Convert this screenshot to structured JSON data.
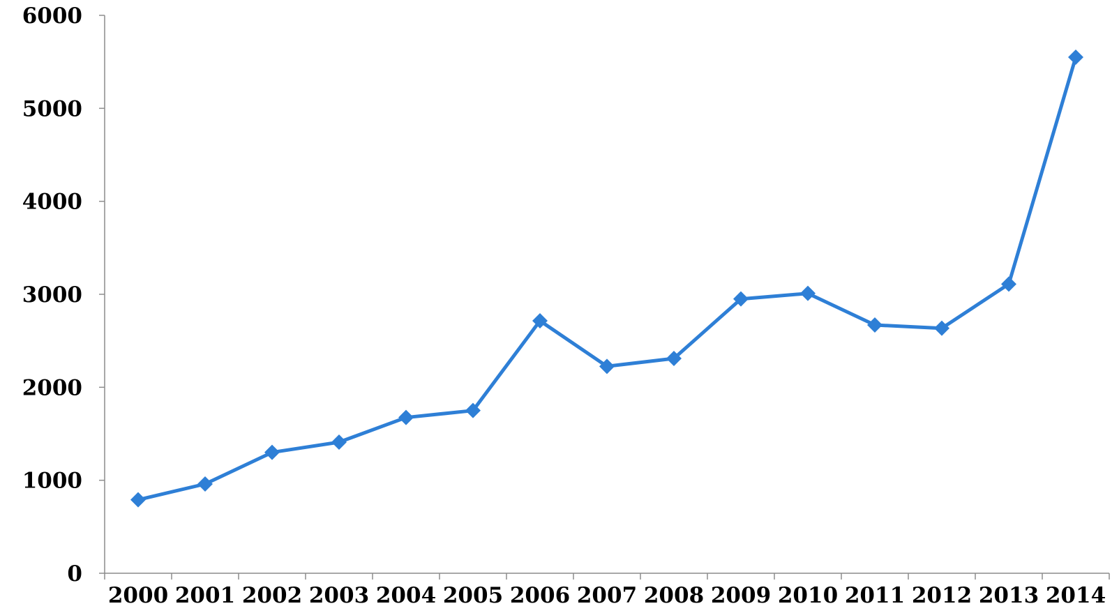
{
  "chart_data": {
    "type": "line",
    "title": "",
    "xlabel": "",
    "ylabel": "",
    "categories": [
      "2000",
      "2001",
      "2002",
      "2003",
      "2004",
      "2005",
      "2006",
      "2007",
      "2008",
      "2009",
      "2010",
      "2011",
      "2012",
      "2013",
      "2014"
    ],
    "series": [
      {
        "values": [
          790,
          960,
          1300,
          1410,
          1675,
          1750,
          2715,
          2225,
          2310,
          2950,
          3010,
          2670,
          2635,
          3110,
          5550
        ],
        "color": "#2e7fd6",
        "marker": "diamond"
      }
    ],
    "ylim": [
      0,
      6000
    ],
    "yticks": [
      "0",
      "1000",
      "2000",
      "3000",
      "4000",
      "5000",
      "6000"
    ],
    "grid": false,
    "legend": "none"
  }
}
